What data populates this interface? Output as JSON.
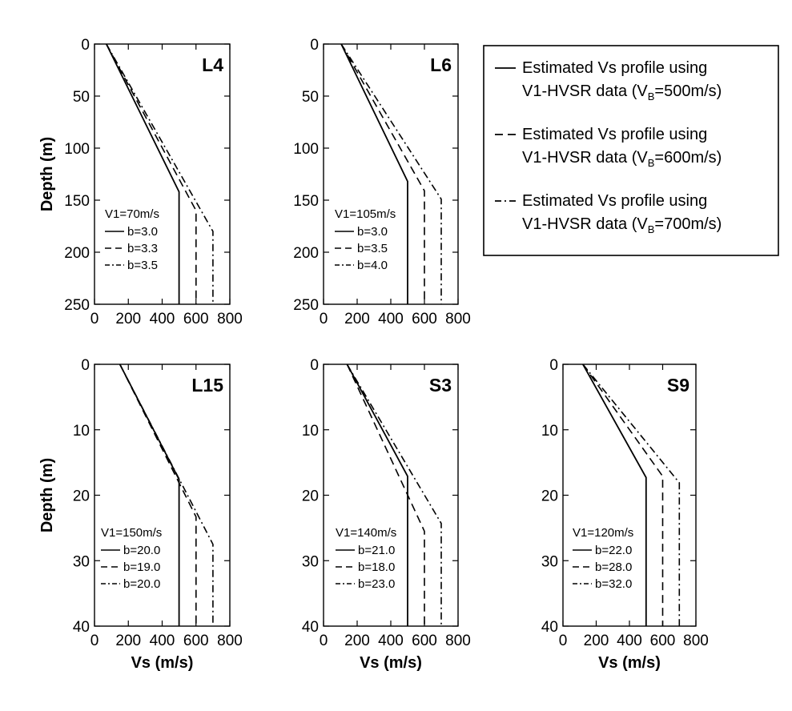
{
  "legend": {
    "placement": "right of top row",
    "entries": [
      {
        "style": "solid",
        "line1": "Estimated Vs profile using",
        "line2_pre": "V1-HVSR data (V",
        "sub": "B",
        "line2_post": "=500m/s)"
      },
      {
        "style": "dashed",
        "line1": "Estimated Vs profile using",
        "line2_pre": "V1-HVSR data (V",
        "sub": "B",
        "line2_post": "=600m/s)"
      },
      {
        "style": "dashdot",
        "line1": "Estimated Vs profile using",
        "line2_pre": "V1-HVSR data (V",
        "sub": "B",
        "line2_post": "=700m/s)"
      }
    ]
  },
  "chart_data": [
    {
      "type": "line",
      "site": "L4",
      "xlabel": "",
      "ylabel": "Depth (m)",
      "xlim": [
        0,
        800
      ],
      "ylim": [
        250,
        0
      ],
      "xticks": [
        "0",
        "200",
        "400",
        "600",
        "800"
      ],
      "yticks": [
        "0",
        "50",
        "100",
        "150",
        "200",
        "250"
      ],
      "v1_label": "V1=70m/s",
      "series": [
        {
          "label": "b=3.0",
          "style": "solid",
          "points": [
            [
              70,
              0
            ],
            [
              500,
              142
            ],
            [
              500,
              250
            ]
          ]
        },
        {
          "label": "b=3.3",
          "style": "dashed",
          "points": [
            [
              70,
              0
            ],
            [
              600,
              160
            ],
            [
              600,
              250
            ]
          ]
        },
        {
          "label": "b=3.5",
          "style": "dashdot",
          "points": [
            [
              70,
              0
            ],
            [
              700,
              180
            ],
            [
              700,
              250
            ]
          ]
        }
      ]
    },
    {
      "type": "line",
      "site": "L6",
      "xlabel": "",
      "ylabel": "",
      "xlim": [
        0,
        800
      ],
      "ylim": [
        250,
        0
      ],
      "xticks": [
        "0",
        "200",
        "400",
        "600",
        "800"
      ],
      "yticks": [
        "0",
        "50",
        "100",
        "150",
        "200",
        "250"
      ],
      "v1_label": "V1=105m/s",
      "series": [
        {
          "label": "b=3.0",
          "style": "solid",
          "points": [
            [
              105,
              0
            ],
            [
              500,
              132
            ],
            [
              500,
              250
            ]
          ]
        },
        {
          "label": "b=3.5",
          "style": "dashed",
          "points": [
            [
              105,
              0
            ],
            [
              600,
              141
            ],
            [
              600,
              250
            ]
          ]
        },
        {
          "label": "b=4.0",
          "style": "dashdot",
          "points": [
            [
              105,
              0
            ],
            [
              700,
              149
            ],
            [
              700,
              250
            ]
          ]
        }
      ]
    },
    {
      "type": "line",
      "site": "L15",
      "xlabel": "Vs (m/s)",
      "ylabel": "Depth (m)",
      "xlim": [
        0,
        800
      ],
      "ylim": [
        40,
        0
      ],
      "xticks": [
        "0",
        "200",
        "400",
        "600",
        "800"
      ],
      "yticks": [
        "0",
        "10",
        "20",
        "30",
        "40"
      ],
      "v1_label": "V1=150m/s",
      "series": [
        {
          "label": "b=20.0",
          "style": "solid",
          "points": [
            [
              150,
              0
            ],
            [
              500,
              17.6
            ],
            [
              500,
              40
            ]
          ]
        },
        {
          "label": "b=19.0",
          "style": "dashed",
          "points": [
            [
              150,
              0
            ],
            [
              600,
              23.3
            ],
            [
              600,
              40
            ]
          ]
        },
        {
          "label": "b=20.0",
          "style": "dashdot",
          "points": [
            [
              150,
              0
            ],
            [
              700,
              27.5
            ],
            [
              700,
              40
            ]
          ]
        }
      ]
    },
    {
      "type": "line",
      "site": "S3",
      "xlabel": "Vs (m/s)",
      "ylabel": "",
      "xlim": [
        0,
        800
      ],
      "ylim": [
        40,
        0
      ],
      "xticks": [
        "0",
        "200",
        "400",
        "600",
        "800"
      ],
      "yticks": [
        "0",
        "10",
        "20",
        "30",
        "40"
      ],
      "v1_label": "V1=140m/s",
      "series": [
        {
          "label": "b=21.0",
          "style": "solid",
          "points": [
            [
              140,
              0
            ],
            [
              500,
              17.1
            ],
            [
              500,
              40
            ]
          ]
        },
        {
          "label": "b=18.0",
          "style": "dashed",
          "points": [
            [
              140,
              0
            ],
            [
              600,
              25.5
            ],
            [
              600,
              40
            ]
          ]
        },
        {
          "label": "b=23.0",
          "style": "dashdot",
          "points": [
            [
              140,
              0
            ],
            [
              700,
              24.3
            ],
            [
              700,
              40
            ]
          ]
        }
      ]
    },
    {
      "type": "line",
      "site": "S9",
      "xlabel": "Vs (m/s)",
      "ylabel": "",
      "xlim": [
        0,
        800
      ],
      "ylim": [
        40,
        0
      ],
      "xticks": [
        "0",
        "200",
        "400",
        "600",
        "800"
      ],
      "yticks": [
        "0",
        "10",
        "20",
        "30",
        "40"
      ],
      "v1_label": "V1=120m/s",
      "series": [
        {
          "label": "b=22.0",
          "style": "solid",
          "points": [
            [
              120,
              0
            ],
            [
              500,
              17.3
            ],
            [
              500,
              40
            ]
          ]
        },
        {
          "label": "b=28.0",
          "style": "dashed",
          "points": [
            [
              120,
              0
            ],
            [
              600,
              17.1
            ],
            [
              600,
              40
            ]
          ]
        },
        {
          "label": "b=32.0",
          "style": "dashdot",
          "points": [
            [
              120,
              0
            ],
            [
              700,
              18.1
            ],
            [
              700,
              40
            ]
          ]
        }
      ]
    }
  ]
}
